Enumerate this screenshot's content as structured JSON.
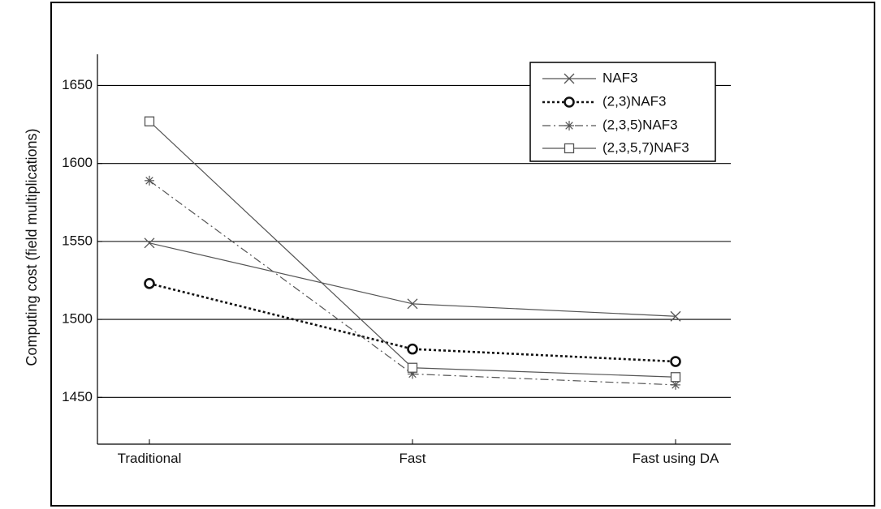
{
  "chart_data": {
    "type": "line",
    "categories": [
      "Traditional",
      "Fast",
      "Fast using DA"
    ],
    "ylabel": "Computing cost (field multiplications)",
    "ylim": [
      1420,
      1670
    ],
    "yticks": [
      1450,
      1500,
      1550,
      1600,
      1650
    ],
    "grid": "horizontal",
    "legend_position": "top-right",
    "series": [
      {
        "name": "NAF3",
        "values": [
          1549,
          1510,
          1502
        ],
        "marker": "x",
        "line": "solid",
        "color": "#555555"
      },
      {
        "name": "(2,3)NAF3",
        "values": [
          1523,
          1481,
          1473
        ],
        "marker": "o",
        "line": "dotted",
        "color": "#111111"
      },
      {
        "name": "(2,3,5)NAF3",
        "values": [
          1589,
          1465,
          1458
        ],
        "marker": "*",
        "line": "dashdot",
        "color": "#555555"
      },
      {
        "name": "(2,3,5,7)NAF3",
        "values": [
          1627,
          1469,
          1463
        ],
        "marker": "square",
        "line": "solid",
        "color": "#555555"
      }
    ]
  }
}
